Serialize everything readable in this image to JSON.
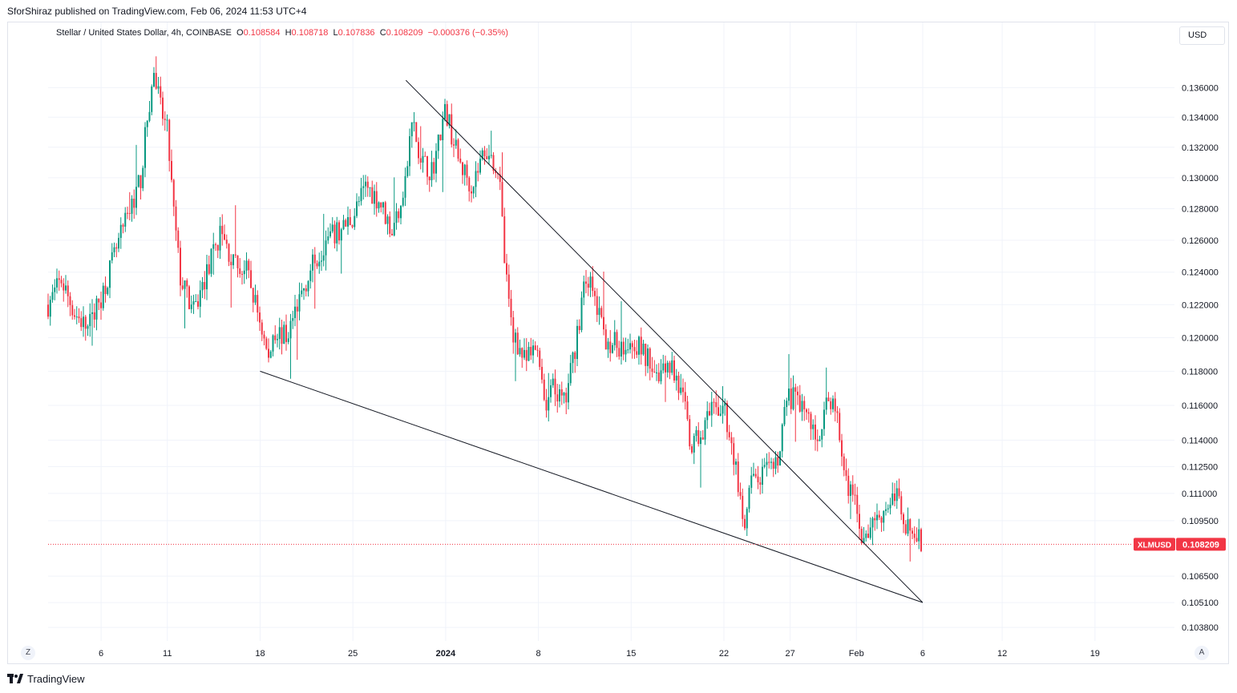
{
  "publisher_line": "SforShiraz published on TradingView.com, Feb 06, 2024 11:53 UTC+4",
  "legend": {
    "symbol": "Stellar / United States Dollar, 4h, COINBASE",
    "open_label": "O",
    "open": "0.108584",
    "high_label": "H",
    "high": "0.108718",
    "low_label": "L",
    "low": "0.107836",
    "close_label": "C",
    "close": "0.108209",
    "change": "−0.000376 (−0.35%)"
  },
  "currency_button": "USD",
  "left_corner_button": "Z",
  "right_corner_button": "A",
  "brand": "TradingView",
  "colors": {
    "up": "#089981",
    "down": "#f23645",
    "trendline": "#131722",
    "grid": "#f0f3fa"
  },
  "chart_data": {
    "type": "candlestick",
    "symbol_tag": "XLMUSD",
    "last_price_label": "0.108209",
    "last_price": 0.108209,
    "y_axis": {
      "scale": "log",
      "range": [
        0.1031,
        0.1395
      ],
      "ticks": [
        0.1038,
        0.1051,
        0.1065,
        0.1095,
        0.111,
        0.1125,
        0.114,
        0.116,
        0.118,
        0.12,
        0.122,
        0.124,
        0.126,
        0.128,
        0.13,
        0.132,
        0.134,
        0.136
      ],
      "tick_labels": [
        "0.103800",
        "0.105100",
        "0.106500",
        "0.109500",
        "0.111000",
        "0.112500",
        "0.114000",
        "0.116000",
        "0.118000",
        "0.120000",
        "0.122000",
        "0.124000",
        "0.126000",
        "0.128000",
        "0.130000",
        "0.132000",
        "0.134000",
        "0.136000"
      ]
    },
    "x_axis": {
      "range": [
        "2023-12-02",
        "2024-02-25"
      ],
      "ticks": [
        "2023-12-06",
        "2023-12-11",
        "2023-12-18",
        "2023-12-25",
        "2024-01-01",
        "2024-01-08",
        "2024-01-15",
        "2024-01-22",
        "2024-01-27",
        "2024-02-01",
        "2024-02-06",
        "2024-02-12",
        "2024-02-19"
      ],
      "tick_labels": [
        "6",
        "11",
        "18",
        "25",
        "2024",
        "8",
        "15",
        "22",
        "27",
        "Feb",
        "6",
        "12",
        "19"
      ],
      "bold_ticks": [
        4
      ]
    },
    "grid": true,
    "price_path": [
      [
        "2023-12-02",
        0.122
      ],
      [
        "2023-12-03",
        0.1235
      ],
      [
        "2023-12-04",
        0.1215
      ],
      [
        "2023-12-05",
        0.1205
      ],
      [
        "2023-12-06",
        0.1225
      ],
      [
        "2023-12-07",
        0.125
      ],
      [
        "2023-12-08",
        0.1275
      ],
      [
        "2023-12-09",
        0.13
      ],
      [
        "2023-12-09T12:00",
        0.134
      ],
      [
        "2023-12-10",
        0.137
      ],
      [
        "2023-12-10T12:00",
        0.1345
      ],
      [
        "2023-12-11",
        0.133
      ],
      [
        "2023-12-11T12:00",
        0.1275
      ],
      [
        "2023-12-12",
        0.1235
      ],
      [
        "2023-12-13",
        0.1215
      ],
      [
        "2023-12-14",
        0.124
      ],
      [
        "2023-12-15",
        0.1265
      ],
      [
        "2023-12-16",
        0.1245
      ],
      [
        "2023-12-17",
        0.124
      ],
      [
        "2023-12-18",
        0.121
      ],
      [
        "2023-12-18T16:00",
        0.1185
      ],
      [
        "2023-12-19",
        0.1205
      ],
      [
        "2023-12-20",
        0.12
      ],
      [
        "2023-12-21",
        0.1225
      ],
      [
        "2023-12-22",
        0.1245
      ],
      [
        "2023-12-23",
        0.126
      ],
      [
        "2023-12-24",
        0.1265
      ],
      [
        "2023-12-25",
        0.1275
      ],
      [
        "2023-12-26",
        0.1295
      ],
      [
        "2023-12-27",
        0.1285
      ],
      [
        "2023-12-28",
        0.1265
      ],
      [
        "2023-12-29",
        0.13
      ],
      [
        "2023-12-29T12:00",
        0.134
      ],
      [
        "2023-12-30",
        0.131
      ],
      [
        "2023-12-31",
        0.1305
      ],
      [
        "2024-01-01",
        0.1345
      ],
      [
        "2024-01-02",
        0.131
      ],
      [
        "2024-01-03",
        0.1295
      ],
      [
        "2024-01-04",
        0.132
      ],
      [
        "2024-01-05",
        0.1305
      ],
      [
        "2024-01-05T12:00",
        0.124
      ],
      [
        "2024-01-06",
        0.1205
      ],
      [
        "2024-01-07",
        0.1185
      ],
      [
        "2024-01-08",
        0.1195
      ],
      [
        "2024-01-08T12:00",
        0.116
      ],
      [
        "2024-01-09",
        0.117
      ],
      [
        "2024-01-10",
        0.116
      ],
      [
        "2024-01-11",
        0.1205
      ],
      [
        "2024-01-11T12:00",
        0.124
      ],
      [
        "2024-01-12",
        0.123
      ],
      [
        "2024-01-13",
        0.12
      ],
      [
        "2024-01-14",
        0.1195
      ],
      [
        "2024-01-15",
        0.12
      ],
      [
        "2024-01-16",
        0.119
      ],
      [
        "2024-01-17",
        0.118
      ],
      [
        "2024-01-18",
        0.1185
      ],
      [
        "2024-01-19",
        0.116
      ],
      [
        "2024-01-19T12:00",
        0.1135
      ],
      [
        "2024-01-20",
        0.114
      ],
      [
        "2024-01-21",
        0.1155
      ],
      [
        "2024-01-22",
        0.116
      ],
      [
        "2024-01-22T12:00",
        0.114
      ],
      [
        "2024-01-23",
        0.112
      ],
      [
        "2024-01-23T12:00",
        0.1085
      ],
      [
        "2024-01-24",
        0.1115
      ],
      [
        "2024-01-25",
        0.112
      ],
      [
        "2024-01-26",
        0.1125
      ],
      [
        "2024-01-26T12:00",
        0.1155
      ],
      [
        "2024-01-27",
        0.1165
      ],
      [
        "2024-01-28",
        0.116
      ],
      [
        "2024-01-29",
        0.114
      ],
      [
        "2024-01-30",
        0.1165
      ],
      [
        "2024-01-30T12:00",
        0.1155
      ],
      [
        "2024-01-31",
        0.1125
      ],
      [
        "2024-02-01",
        0.11
      ],
      [
        "2024-02-01T16:00",
        0.108
      ],
      [
        "2024-02-02",
        0.1095
      ],
      [
        "2024-02-03",
        0.11
      ],
      [
        "2024-02-04",
        0.111
      ],
      [
        "2024-02-04T16:00",
        0.1095
      ],
      [
        "2024-02-05",
        0.109
      ],
      [
        "2024-02-06",
        0.1082
      ]
    ],
    "trendlines": [
      {
        "from": [
          "2023-12-18",
          0.118
        ],
        "to": [
          "2024-02-06",
          0.1051
        ]
      },
      {
        "from": [
          "2023-12-29",
          0.1365
        ],
        "to": [
          "2024-02-06",
          0.1051
        ]
      }
    ]
  }
}
